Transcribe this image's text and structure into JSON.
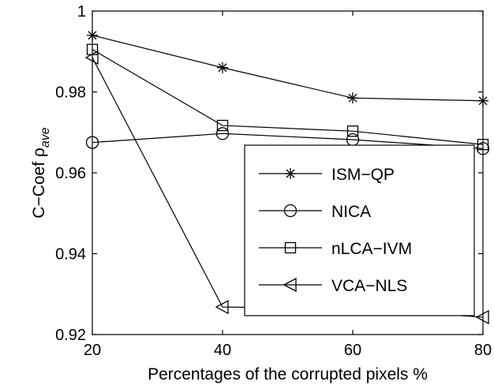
{
  "chart_data": {
    "type": "line",
    "xlabel": "Percentages of the corrupted pixels %",
    "ylabel_main": "C−Coef ρ",
    "ylabel_sub": "ave",
    "x": [
      20,
      40,
      60,
      80
    ],
    "xlim": [
      20,
      80
    ],
    "ylim": [
      0.92,
      1.0
    ],
    "xticks": [
      "20",
      "40",
      "60",
      "80"
    ],
    "yticks": [
      "0.92",
      "0.94",
      "0.96",
      "0.98",
      "1"
    ],
    "xtick_values": [
      20,
      40,
      60,
      80
    ],
    "ytick_values": [
      0.92,
      0.94,
      0.96,
      0.98,
      1.0
    ],
    "grid": false,
    "legend_position": "lower-right",
    "series": [
      {
        "name": "ISM−QP",
        "marker": "asterisk",
        "values": [
          0.994,
          0.986,
          0.9785,
          0.9778
        ]
      },
      {
        "name": "NICA",
        "marker": "circle",
        "values": [
          0.9675,
          0.9697,
          0.9682,
          0.966
        ]
      },
      {
        "name": "nLCA−IVM",
        "marker": "square",
        "values": [
          0.9905,
          0.9717,
          0.9703,
          0.967
        ]
      },
      {
        "name": "VCA−NLS",
        "marker": "triangle-left",
        "values": [
          0.9885,
          0.9268,
          0.9265,
          0.9243
        ]
      }
    ]
  }
}
